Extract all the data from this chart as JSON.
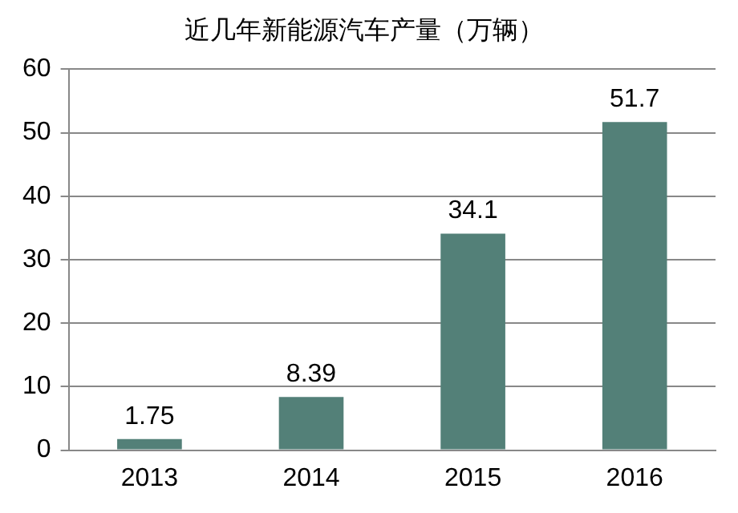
{
  "chart_data": {
    "type": "bar",
    "title": "近几年新能源汽车产量（万辆）",
    "categories": [
      "2013",
      "2014",
      "2015",
      "2016"
    ],
    "values": [
      1.75,
      8.39,
      34.1,
      51.7
    ],
    "color": "#538078",
    "ylim": [
      0,
      60
    ],
    "yticks": [
      0,
      10,
      20,
      30,
      40,
      50,
      60
    ],
    "grid": "y",
    "data_labels": true,
    "legend": false
  }
}
